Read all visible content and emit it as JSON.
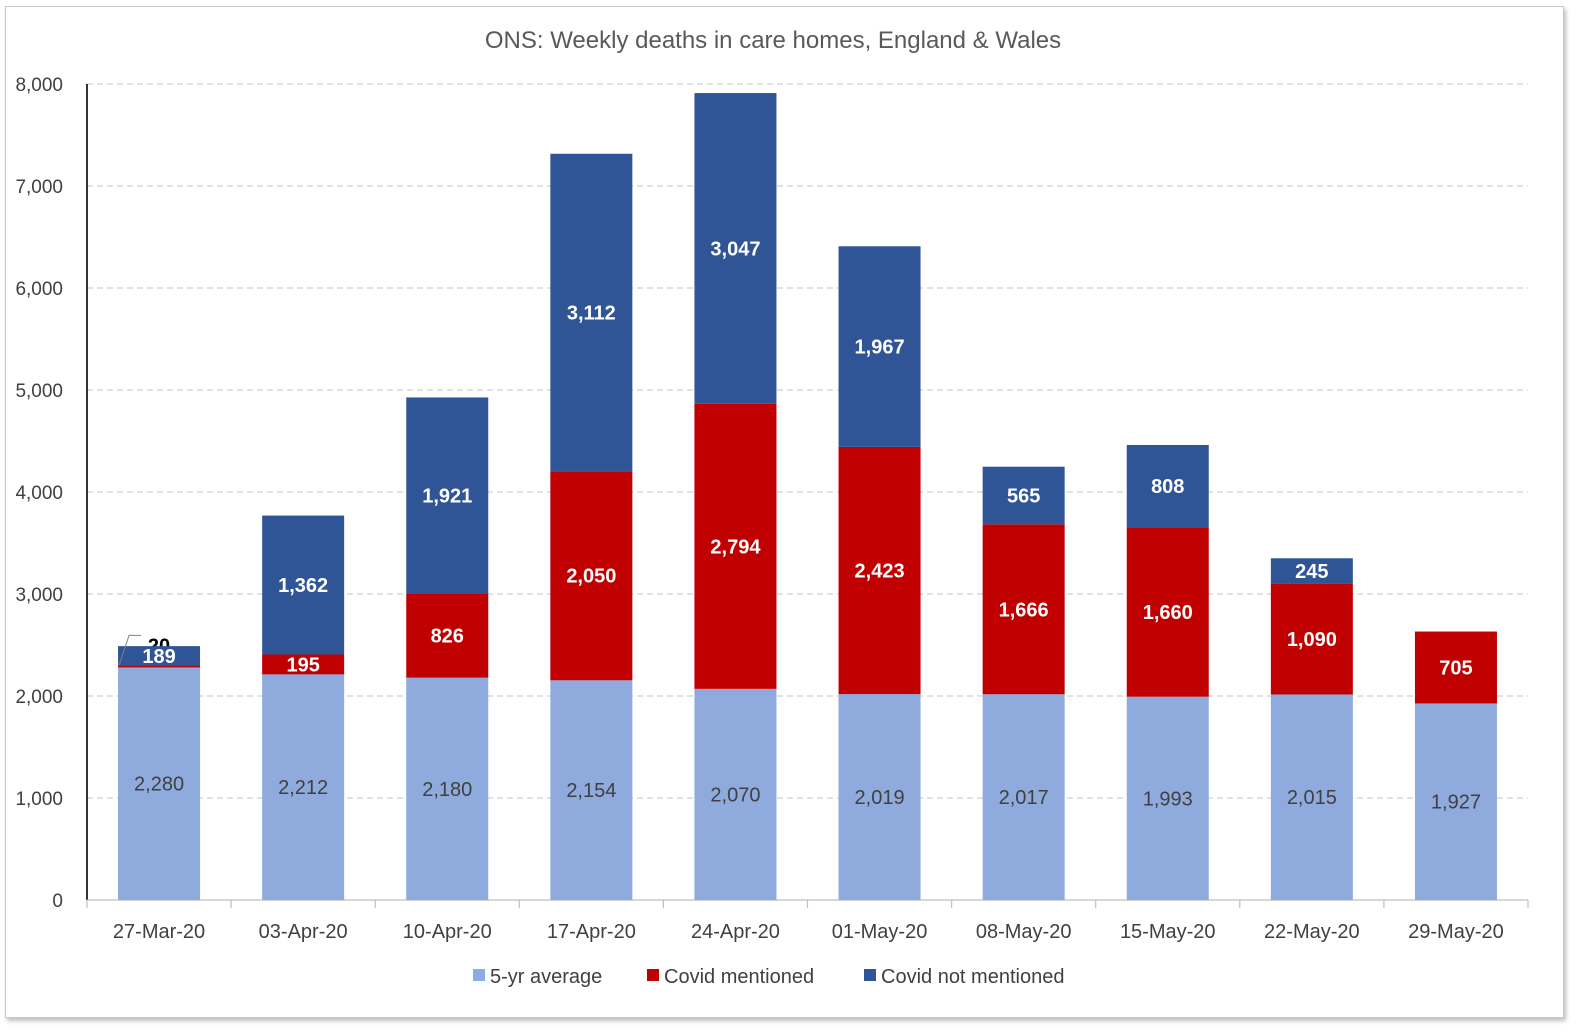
{
  "chart_data": {
    "type": "bar",
    "stacked": true,
    "title": "ONS: Weekly deaths in care homes, England & Wales",
    "xlabel": "",
    "ylabel": "",
    "ylim": [
      0,
      8000
    ],
    "yticks": [
      "0",
      "1,000",
      "2,000",
      "3,000",
      "4,000",
      "5,000",
      "6,000",
      "7,000",
      "8,000"
    ],
    "grid": true,
    "legend_position": "bottom",
    "categories": [
      "27-Mar-20",
      "03-Apr-20",
      "10-Apr-20",
      "17-Apr-20",
      "24-Apr-20",
      "01-May-20",
      "08-May-20",
      "15-May-20",
      "22-May-20",
      "29-May-20"
    ],
    "series": [
      {
        "name": "5-yr average",
        "color": "#8faadc",
        "label_color": "#404040",
        "values": [
          2280,
          2212,
          2180,
          2154,
          2070,
          2019,
          2017,
          1993,
          2015,
          1927
        ],
        "labels": [
          "2,280",
          "2,212",
          "2,180",
          "2,154",
          "2,070",
          "2,019",
          "2,017",
          "1,993",
          "2,015",
          "1,927"
        ]
      },
      {
        "name": "Covid mentioned",
        "color": "#c00000",
        "label_color": "#ffffff",
        "values": [
          20,
          195,
          826,
          2050,
          2794,
          2423,
          1666,
          1660,
          1090,
          705
        ],
        "labels": [
          "20",
          "195",
          "826",
          "2,050",
          "2,794",
          "2,423",
          "1,666",
          "1,660",
          "1,090",
          "705"
        ]
      },
      {
        "name": "Covid not mentioned",
        "color": "#2f5597",
        "label_color": "#ffffff",
        "values": [
          189,
          1362,
          1921,
          3112,
          3047,
          1967,
          565,
          808,
          245,
          0
        ],
        "labels": [
          "189",
          "1,362",
          "1,921",
          "3,112",
          "3,047",
          "1,967",
          "565",
          "808",
          "245",
          ""
        ]
      }
    ]
  }
}
